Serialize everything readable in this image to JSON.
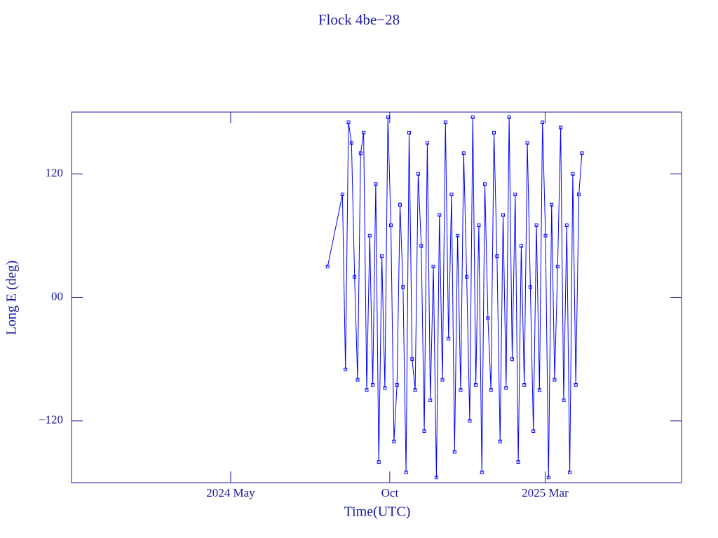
{
  "chart_data": {
    "type": "line",
    "title": "Flock 4be−28",
    "xlabel": "Time(UTC)",
    "ylabel": "Long E (deg)",
    "xlim": [
      2023.91,
      2025.52
    ],
    "xticks": [
      {
        "value": 2024.33,
        "label": "2024 May"
      },
      {
        "value": 2024.75,
        "label": "Oct"
      },
      {
        "value": 2025.16,
        "label": "2025 Mar"
      }
    ],
    "ylim": [
      -180,
      180
    ],
    "yticks": [
      {
        "value": -120,
        "label": "−120"
      },
      {
        "value": 0,
        "label": "00"
      },
      120
    ],
    "color": "#0000ff",
    "frame_color": "#1a1aa0",
    "x": [
      2024.586,
      2024.625,
      2024.633,
      2024.641,
      2024.649,
      2024.657,
      2024.665,
      2024.673,
      2024.681,
      2024.689,
      2024.697,
      2024.705,
      2024.713,
      2024.721,
      2024.729,
      2024.737,
      2024.745,
      2024.753,
      2024.761,
      2024.769,
      2024.777,
      2024.785,
      2024.793,
      2024.801,
      2024.809,
      2024.817,
      2024.825,
      2024.833,
      2024.841,
      2024.849,
      2024.857,
      2024.865,
      2024.873,
      2024.881,
      2024.889,
      2024.897,
      2024.905,
      2024.913,
      2024.921,
      2024.929,
      2024.937,
      2024.945,
      2024.953,
      2024.961,
      2024.969,
      2024.977,
      2024.985,
      2024.993,
      2025.001,
      2025.009,
      2025.017,
      2025.025,
      2025.033,
      2025.041,
      2025.049,
      2025.057,
      2025.065,
      2025.073,
      2025.081,
      2025.089,
      2025.097,
      2025.105,
      2025.113,
      2025.121,
      2025.129,
      2025.137,
      2025.145,
      2025.153,
      2025.161,
      2025.169,
      2025.177,
      2025.185,
      2025.193,
      2025.201,
      2025.209,
      2025.217,
      2025.225,
      2025.233,
      2025.241,
      2025.249,
      2025.257
    ],
    "values": [
      30,
      100,
      -70,
      170,
      150,
      20,
      -80,
      140,
      160,
      -90,
      60,
      -85,
      110,
      -160,
      40,
      -88,
      175,
      70,
      -140,
      -85,
      90,
      10,
      -170,
      160,
      -60,
      -90,
      120,
      50,
      -130,
      150,
      -100,
      30,
      -175,
      80,
      -80,
      170,
      -40,
      100,
      -150,
      60,
      -90,
      140,
      20,
      -120,
      175,
      -85,
      70,
      -170,
      110,
      -20,
      -90,
      160,
      40,
      -140,
      80,
      -88,
      175,
      -60,
      100,
      -160,
      50,
      -85,
      150,
      10,
      -130,
      70,
      -90,
      170,
      60,
      -175,
      90,
      -80,
      30,
      165,
      -100,
      70,
      -170,
      120,
      -85,
      100,
      140
    ]
  }
}
